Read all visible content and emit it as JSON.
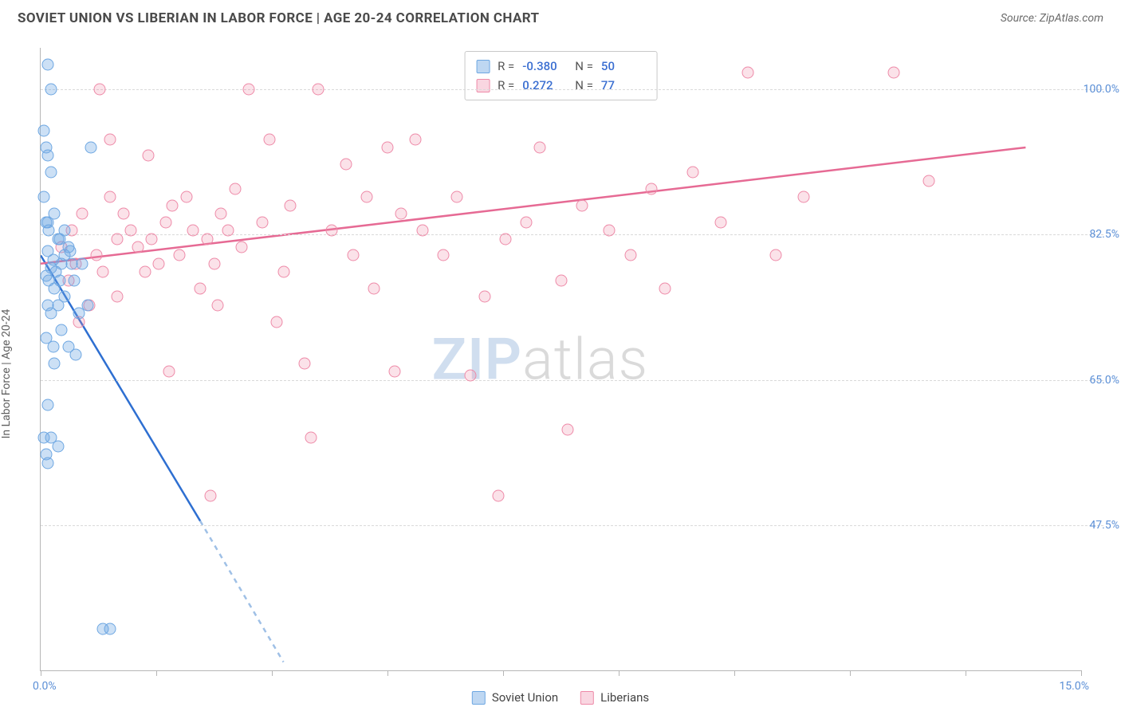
{
  "title": "SOVIET UNION VS LIBERIAN IN LABOR FORCE | AGE 20-24 CORRELATION CHART",
  "source": "Source: ZipAtlas.com",
  "ylabel": "In Labor Force | Age 20-24",
  "watermark": {
    "left": "ZIP",
    "right": "atlas"
  },
  "chart": {
    "type": "scatter",
    "xlim": [
      0,
      15
    ],
    "ylim": [
      30,
      105
    ],
    "x_min_label": "0.0%",
    "x_max_label": "15.0%",
    "yticks": [
      47.5,
      65.0,
      82.5,
      100.0
    ],
    "ytick_labels": [
      "47.5%",
      "65.0%",
      "82.5%",
      "100.0%"
    ],
    "xticks_minor": [
      0,
      1.67,
      3.33,
      5.0,
      6.67,
      8.33,
      10.0,
      11.67,
      13.33,
      15.0
    ],
    "background_color": "#ffffff",
    "grid_color": "#d9d9d9",
    "axis_color": "#b6b6b6",
    "tick_label_color": "#5b8fd6",
    "series": {
      "blue": {
        "label": "Soviet Union",
        "color": "#6ea7e2",
        "fill": "rgba(110,167,226,0.35)",
        "R": "-0.380",
        "N": "50",
        "points": [
          [
            0.1,
            103
          ],
          [
            0.15,
            100
          ],
          [
            0.05,
            95
          ],
          [
            0.08,
            93
          ],
          [
            0.1,
            92
          ],
          [
            0.15,
            90
          ],
          [
            0.05,
            87
          ],
          [
            0.2,
            85
          ],
          [
            0.08,
            84
          ],
          [
            0.72,
            93
          ],
          [
            0.12,
            83
          ],
          [
            0.25,
            82
          ],
          [
            0.4,
            81
          ],
          [
            0.1,
            80.5
          ],
          [
            0.35,
            80
          ],
          [
            0.18,
            79.5
          ],
          [
            0.3,
            79
          ],
          [
            0.15,
            78.5
          ],
          [
            0.22,
            78
          ],
          [
            0.08,
            77.5
          ],
          [
            0.28,
            77
          ],
          [
            0.12,
            77
          ],
          [
            0.2,
            76
          ],
          [
            0.35,
            75
          ],
          [
            0.1,
            74
          ],
          [
            0.25,
            74
          ],
          [
            0.15,
            73
          ],
          [
            0.3,
            71
          ],
          [
            0.08,
            70
          ],
          [
            0.4,
            69
          ],
          [
            0.5,
            68
          ],
          [
            0.2,
            67
          ],
          [
            0.1,
            62
          ],
          [
            0.05,
            58
          ],
          [
            0.15,
            58
          ],
          [
            0.25,
            57
          ],
          [
            0.08,
            56
          ],
          [
            0.1,
            55
          ],
          [
            0.68,
            74
          ],
          [
            0.55,
            73
          ],
          [
            0.18,
            69
          ],
          [
            0.9,
            35
          ],
          [
            1.0,
            35
          ],
          [
            0.45,
            79
          ],
          [
            0.6,
            79
          ],
          [
            0.42,
            80.5
          ],
          [
            0.1,
            84
          ],
          [
            0.35,
            83
          ],
          [
            0.28,
            82
          ],
          [
            0.48,
            77
          ]
        ],
        "trend": {
          "x1": 0,
          "y1": 80,
          "x2": 2.3,
          "y2": 48,
          "dashed_from": 2.3,
          "dashed_to_x": 3.5,
          "dashed_to_y": 31
        }
      },
      "pink": {
        "label": "Liberians",
        "color": "#ee8aa8",
        "fill": "rgba(238,138,168,0.25)",
        "R": "0.272",
        "N": "77",
        "points": [
          [
            0.3,
            81
          ],
          [
            0.5,
            79
          ],
          [
            0.45,
            83
          ],
          [
            0.8,
            80
          ],
          [
            0.6,
            85
          ],
          [
            0.9,
            78
          ],
          [
            1.1,
            82
          ],
          [
            1.0,
            87
          ],
          [
            0.7,
            74
          ],
          [
            1.2,
            85
          ],
          [
            1.4,
            81
          ],
          [
            1.3,
            83
          ],
          [
            1.1,
            75
          ],
          [
            1.6,
            82
          ],
          [
            1.5,
            78
          ],
          [
            1.8,
            84
          ],
          [
            1.7,
            79
          ],
          [
            1.9,
            86
          ],
          [
            2.0,
            80
          ],
          [
            2.2,
            83
          ],
          [
            2.1,
            87
          ],
          [
            2.4,
            82
          ],
          [
            2.3,
            76
          ],
          [
            2.6,
            85
          ],
          [
            2.5,
            79
          ],
          [
            2.8,
            88
          ],
          [
            2.7,
            83
          ],
          [
            3.0,
            100
          ],
          [
            2.9,
            81
          ],
          [
            3.2,
            84
          ],
          [
            3.3,
            94
          ],
          [
            3.5,
            78
          ],
          [
            3.6,
            86
          ],
          [
            3.8,
            67
          ],
          [
            4.0,
            100
          ],
          [
            4.2,
            83
          ],
          [
            3.9,
            58
          ],
          [
            4.5,
            80
          ],
          [
            4.4,
            91
          ],
          [
            4.8,
            76
          ],
          [
            4.7,
            87
          ],
          [
            5.0,
            93
          ],
          [
            5.2,
            85
          ],
          [
            5.1,
            66
          ],
          [
            5.5,
            83
          ],
          [
            5.4,
            94
          ],
          [
            5.8,
            80
          ],
          [
            6.0,
            87
          ],
          [
            6.2,
            65.5
          ],
          [
            6.4,
            75
          ],
          [
            6.7,
            82
          ],
          [
            6.6,
            51
          ],
          [
            7.0,
            84
          ],
          [
            7.2,
            93
          ],
          [
            7.5,
            77
          ],
          [
            7.8,
            86
          ],
          [
            8.2,
            83
          ],
          [
            8.5,
            80
          ],
          [
            8.8,
            88
          ],
          [
            7.6,
            59
          ],
          [
            9.0,
            76
          ],
          [
            9.4,
            90
          ],
          [
            9.8,
            84
          ],
          [
            10.2,
            102
          ],
          [
            10.6,
            80
          ],
          [
            11.0,
            87
          ],
          [
            12.3,
            102
          ],
          [
            1.85,
            66
          ],
          [
            2.55,
            74
          ],
          [
            3.4,
            72
          ],
          [
            1.55,
            92
          ],
          [
            1.0,
            94
          ],
          [
            0.85,
            100
          ],
          [
            12.8,
            89
          ],
          [
            2.45,
            51
          ],
          [
            0.4,
            77
          ],
          [
            0.55,
            72
          ]
        ],
        "trend": {
          "x1": 0,
          "y1": 79,
          "x2": 14.2,
          "y2": 93
        }
      }
    },
    "legend_stats": [
      {
        "swatch": "blue",
        "R": "-0.380",
        "N": "50"
      },
      {
        "swatch": "pink",
        "R": "0.272",
        "N": "77"
      }
    ],
    "x_legend": [
      {
        "swatch": "blue",
        "label": "Soviet Union"
      },
      {
        "swatch": "pink",
        "label": "Liberians"
      }
    ]
  }
}
